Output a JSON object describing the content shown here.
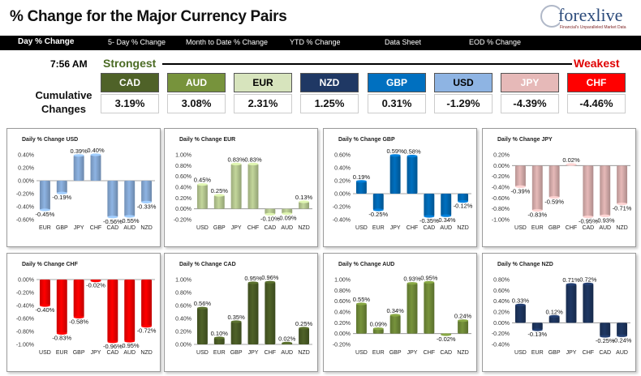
{
  "header": {
    "title": "% Change for the Major Currency Pairs",
    "logo_text": "forexlive",
    "logo_tagline": "Financial's Unparalleled Market Data"
  },
  "nav": {
    "items": [
      "Day % Change",
      "5- Day % Change",
      "Month to Date % Change",
      "YTD % Change",
      "Data Sheet",
      "EOD % Change"
    ]
  },
  "summary": {
    "time": "7:56 AM",
    "strongest_label": "Strongest",
    "weakest_label": "Weakest",
    "cumulative_label_line1": "Cumulative",
    "cumulative_label_line2": "Changes",
    "currencies": [
      {
        "code": "CAD",
        "value": "3.19%",
        "bg": "#4f6228",
        "fg": "#ffffff"
      },
      {
        "code": "AUD",
        "value": "3.08%",
        "bg": "#77933c",
        "fg": "#ffffff"
      },
      {
        "code": "EUR",
        "value": "2.31%",
        "bg": "#d7e4bd",
        "fg": "#000000"
      },
      {
        "code": "NZD",
        "value": "1.25%",
        "bg": "#1f3864",
        "fg": "#ffffff"
      },
      {
        "code": "GBP",
        "value": "0.31%",
        "bg": "#0070c0",
        "fg": "#ffffff"
      },
      {
        "code": "USD",
        "value": "-1.29%",
        "bg": "#8eb4e3",
        "fg": "#000000"
      },
      {
        "code": "JPY",
        "value": "-4.39%",
        "bg": "#e6b9b8",
        "fg": "#ffffff"
      },
      {
        "code": "CHF",
        "value": "-4.46%",
        "bg": "#ff0000",
        "fg": "#ffffff"
      }
    ]
  },
  "chart_data": [
    {
      "type": "bar",
      "title": "Daily % Change USD",
      "color": "#8eb4e3",
      "categories": [
        "EUR",
        "GBP",
        "JPY",
        "CHF",
        "CAD",
        "AUD",
        "NZD"
      ],
      "values": [
        -0.45,
        -0.19,
        0.39,
        0.4,
        -0.56,
        -0.55,
        -0.33
      ],
      "ylim": [
        -0.6,
        0.4
      ],
      "ticks": [
        "0.40%",
        "0.20%",
        "0.00%",
        "-0.20%",
        "-0.40%",
        "-0.60%"
      ]
    },
    {
      "type": "bar",
      "title": "Daily % Change EUR",
      "color": "#c3d69b",
      "categories": [
        "USD",
        "GBP",
        "JPY",
        "CHF",
        "CAD",
        "AUD",
        "NZD"
      ],
      "values": [
        0.45,
        0.25,
        0.83,
        0.83,
        -0.1,
        -0.09,
        0.13
      ],
      "ylim": [
        -0.2,
        1.0
      ],
      "ticks": [
        "1.00%",
        "0.80%",
        "0.60%",
        "0.40%",
        "0.20%",
        "0.00%",
        "-0.20%"
      ]
    },
    {
      "type": "bar",
      "title": "Daily % Change GBP",
      "color": "#0070c0",
      "categories": [
        "USD",
        "EUR",
        "JPY",
        "CHF",
        "CAD",
        "AUD",
        "NZD"
      ],
      "values": [
        0.19,
        -0.25,
        0.59,
        0.58,
        -0.35,
        -0.34,
        -0.12
      ],
      "ylim": [
        -0.4,
        0.6
      ],
      "ticks": [
        "0.60%",
        "0.40%",
        "0.20%",
        "0.00%",
        "-0.20%",
        "-0.40%"
      ]
    },
    {
      "type": "bar",
      "title": "Daily % Change JPY",
      "color": "#e6b9b8",
      "categories": [
        "USD",
        "EUR",
        "GBP",
        "CHF",
        "CAD",
        "AUD",
        "NZD"
      ],
      "values": [
        -0.39,
        -0.83,
        -0.59,
        0.02,
        -0.95,
        -0.93,
        -0.71
      ],
      "ylim": [
        -1.0,
        0.2
      ],
      "ticks": [
        "0.20%",
        "0.00%",
        "-0.20%",
        "-0.40%",
        "-0.60%",
        "-0.80%",
        "-1.00%"
      ]
    },
    {
      "type": "bar",
      "title": "Daily % Change CHF",
      "color": "#ff0000",
      "categories": [
        "USD",
        "EUR",
        "GBP",
        "JPY",
        "CAD",
        "AUD",
        "NZD"
      ],
      "values": [
        -0.4,
        -0.83,
        -0.58,
        -0.02,
        -0.96,
        -0.95,
        -0.72
      ],
      "ylim": [
        -1.0,
        0.0
      ],
      "ticks": [
        "0.00%",
        "-0.20%",
        "-0.40%",
        "-0.60%",
        "-0.80%",
        "-1.00%"
      ]
    },
    {
      "type": "bar",
      "title": "Daily % Change CAD",
      "color": "#4f6228",
      "categories": [
        "USD",
        "EUR",
        "GBP",
        "JPY",
        "CHF",
        "AUD",
        "NZD"
      ],
      "values": [
        0.56,
        0.1,
        0.35,
        0.95,
        0.96,
        0.02,
        0.25
      ],
      "ylim": [
        0.0,
        1.0
      ],
      "ticks": [
        "1.00%",
        "0.80%",
        "0.60%",
        "0.40%",
        "0.20%",
        "0.00%"
      ]
    },
    {
      "type": "bar",
      "title": "Daily % Change AUD",
      "color": "#77933c",
      "categories": [
        "USD",
        "EUR",
        "GBP",
        "JPY",
        "CHF",
        "CAD",
        "NZD"
      ],
      "values": [
        0.55,
        0.09,
        0.34,
        0.93,
        0.95,
        -0.02,
        0.24
      ],
      "ylim": [
        -0.2,
        1.0
      ],
      "ticks": [
        "1.00%",
        "0.80%",
        "0.60%",
        "0.40%",
        "0.20%",
        "0.00%",
        "-0.20%"
      ]
    },
    {
      "type": "bar",
      "title": "Daily % Change NZD",
      "color": "#1f3864",
      "categories": [
        "USD",
        "EUR",
        "GBP",
        "JPY",
        "CHF",
        "CAD",
        "AUD"
      ],
      "values": [
        0.33,
        -0.13,
        0.12,
        0.71,
        0.72,
        -0.25,
        -0.24
      ],
      "ylim": [
        -0.4,
        0.8
      ],
      "ticks": [
        "0.80%",
        "0.60%",
        "0.40%",
        "0.20%",
        "0.00%",
        "-0.20%",
        "-0.40%"
      ]
    }
  ]
}
